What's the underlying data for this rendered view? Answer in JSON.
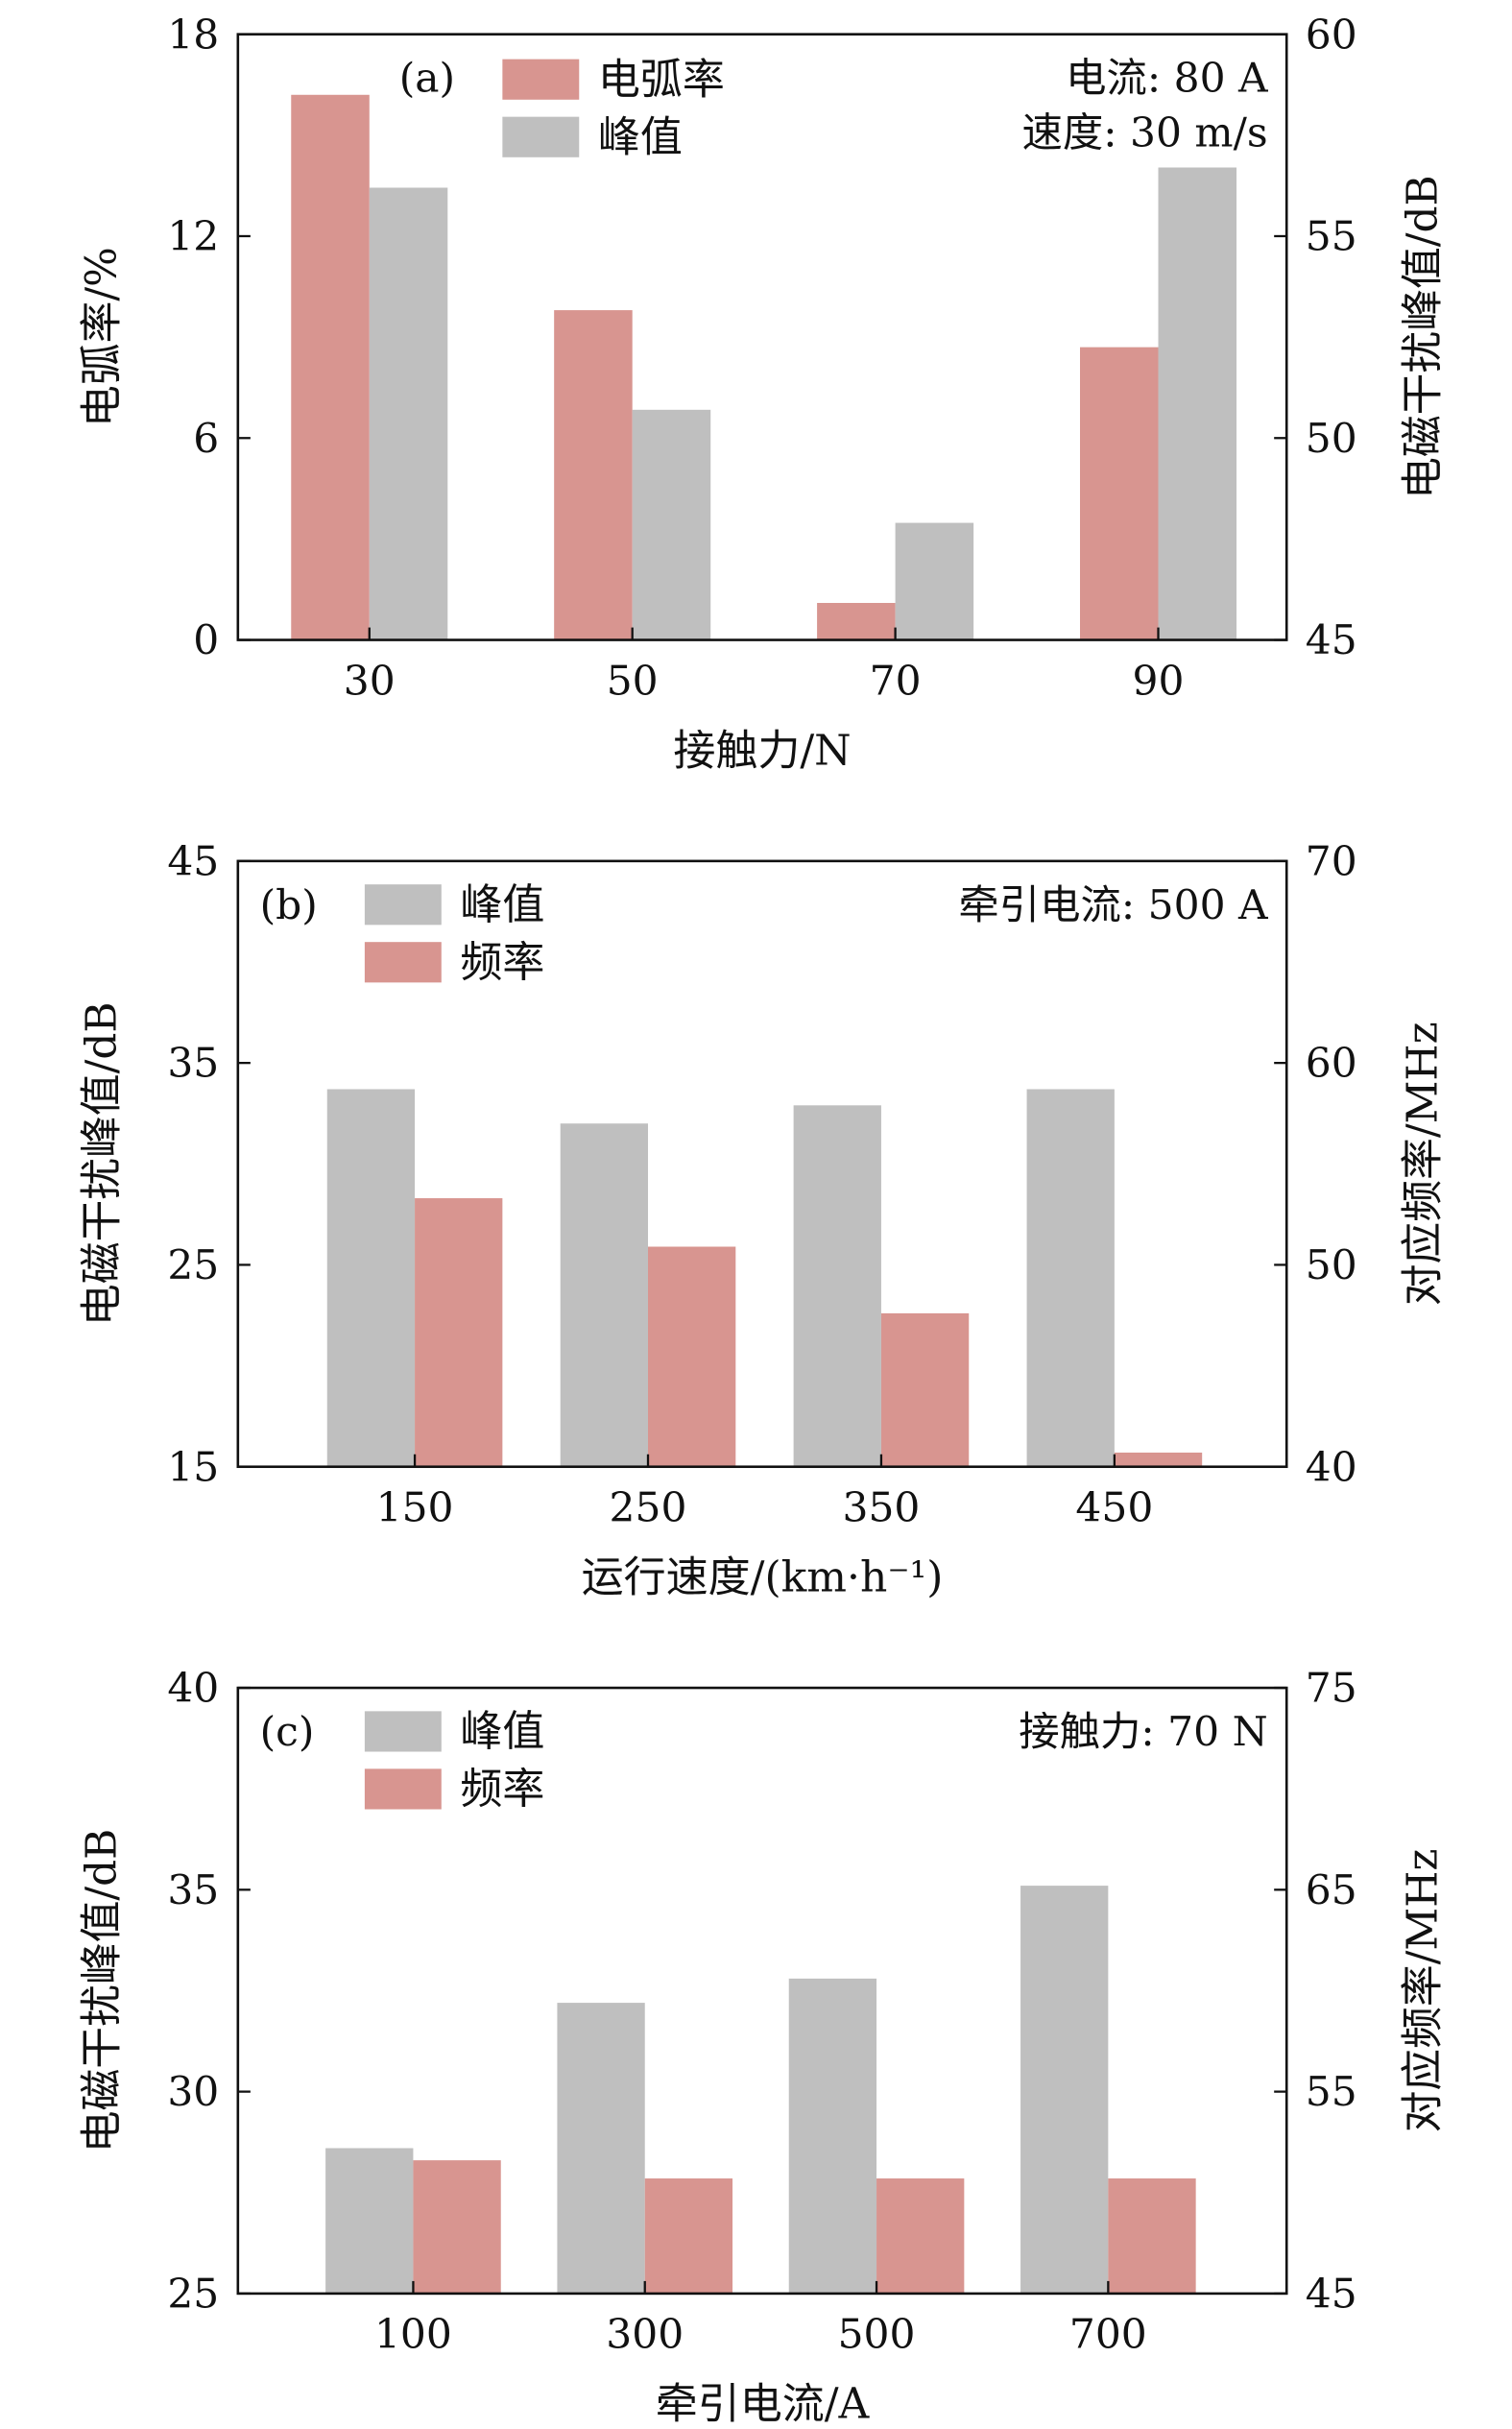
{
  "colors": {
    "red": "#d89590",
    "gray": "#bfbfbf",
    "axis": "#111111"
  },
  "chart_data": [
    {
      "type": "bar",
      "panel_label": "(a)",
      "categories": [
        "30",
        "50",
        "70",
        "90"
      ],
      "xlabel": "接触力/N",
      "ylabel": "电弧率/%",
      "y2label": "电磁干扰峰值/dB",
      "ylim": [
        0,
        18
      ],
      "yticks": [
        0,
        6,
        12,
        18
      ],
      "y2lim": [
        45,
        60
      ],
      "y2ticks": [
        45,
        50,
        55,
        60
      ],
      "annotation": [
        "电流: 80 A",
        "速度: 30 m/s"
      ],
      "series": [
        {
          "name": "电弧率",
          "axis": "left",
          "color": "#d89590",
          "values": [
            16.2,
            9.8,
            1.1,
            8.7
          ]
        },
        {
          "name": "峰值",
          "axis": "right",
          "color": "#bfbfbf",
          "values": [
            56.2,
            50.7,
            47.9,
            56.7
          ]
        }
      ]
    },
    {
      "type": "bar",
      "panel_label": "(b)",
      "categories": [
        "150",
        "250",
        "350",
        "450"
      ],
      "xlabel": "运行速度/(km·h⁻¹)",
      "ylabel": "电磁干扰峰值/dB",
      "y2label": "对应频率/MHz",
      "ylim": [
        15,
        45
      ],
      "yticks": [
        15,
        25,
        35,
        45
      ],
      "y2lim": [
        40,
        70
      ],
      "y2ticks": [
        40,
        50,
        60,
        70
      ],
      "annotation": [
        "牵引电流: 500 A"
      ],
      "series": [
        {
          "name": "峰值",
          "axis": "left",
          "color": "#bfbfbf",
          "values": [
            33.7,
            32.0,
            32.9,
            33.7
          ]
        },
        {
          "name": "频率",
          "axis": "right",
          "color": "#d89590",
          "values": [
            53.3,
            50.9,
            47.6,
            40.7
          ]
        }
      ]
    },
    {
      "type": "bar",
      "panel_label": "(c)",
      "categories": [
        "100",
        "300",
        "500",
        "700"
      ],
      "xlabel": "牵引电流/A",
      "ylabel": "电磁干扰峰值/dB",
      "y2label": "对应频率/MHz",
      "ylim": [
        25,
        40
      ],
      "yticks": [
        25,
        30,
        35,
        40
      ],
      "y2lim": [
        45,
        75
      ],
      "y2ticks": [
        45,
        55,
        65,
        75
      ],
      "annotation": [
        "接触力: 70 N"
      ],
      "series": [
        {
          "name": "峰值",
          "axis": "left",
          "color": "#bfbfbf",
          "values": [
            28.6,
            32.2,
            32.8,
            35.1
          ]
        },
        {
          "name": "频率",
          "axis": "right",
          "color": "#d89590",
          "values": [
            51.6,
            50.7,
            50.7,
            50.7
          ]
        }
      ]
    }
  ]
}
